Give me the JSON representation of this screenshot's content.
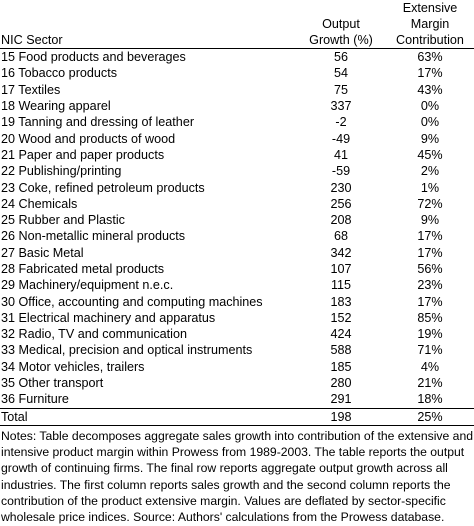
{
  "headers": {
    "sector": "NIC Sector",
    "growth_line1": "Output",
    "growth_line2": "Growth (%)",
    "margin_line1": "Extensive",
    "margin_line2": "Margin",
    "margin_line3": "Contribution"
  },
  "rows": [
    {
      "sector": "15 Food products and beverages",
      "growth": "56",
      "margin": "63%"
    },
    {
      "sector": "16 Tobacco products",
      "growth": "54",
      "margin": "17%"
    },
    {
      "sector": "17 Textiles",
      "growth": "75",
      "margin": "43%"
    },
    {
      "sector": "18 Wearing apparel",
      "growth": "337",
      "margin": "0%"
    },
    {
      "sector": "19 Tanning and dressing of leather",
      "growth": "-2",
      "margin": "0%"
    },
    {
      "sector": "20 Wood and products of wood",
      "growth": "-49",
      "margin": "9%"
    },
    {
      "sector": "21 Paper and paper products",
      "growth": "41",
      "margin": "45%"
    },
    {
      "sector": "22 Publishing/printing",
      "growth": "-59",
      "margin": "2%"
    },
    {
      "sector": "23 Coke, refined petroleum products",
      "growth": "230",
      "margin": "1%"
    },
    {
      "sector": "24 Chemicals",
      "growth": "256",
      "margin": "72%"
    },
    {
      "sector": "25 Rubber and Plastic",
      "growth": "208",
      "margin": "9%"
    },
    {
      "sector": "26 Non-metallic mineral products",
      "growth": "68",
      "margin": "17%"
    },
    {
      "sector": "27 Basic Metal",
      "growth": "342",
      "margin": "17%"
    },
    {
      "sector": "28 Fabricated metal products",
      "growth": "107",
      "margin": "56%"
    },
    {
      "sector": "29 Machinery/equipment n.e.c.",
      "growth": "115",
      "margin": "23%"
    },
    {
      "sector": "30 Office, accounting and computing machines",
      "growth": "183",
      "margin": "17%"
    },
    {
      "sector": "31 Electrical machinery and apparatus",
      "growth": "152",
      "margin": "85%"
    },
    {
      "sector": "32 Radio, TV and communication",
      "growth": "424",
      "margin": "19%"
    },
    {
      "sector": "33 Medical, precision and optical instruments",
      "growth": "588",
      "margin": "71%"
    },
    {
      "sector": "34 Motor vehicles, trailers",
      "growth": "185",
      "margin": "4%"
    },
    {
      "sector": "35 Other transport",
      "growth": "280",
      "margin": "21%"
    },
    {
      "sector": "36 Furniture",
      "growth": "291",
      "margin": "18%"
    }
  ],
  "total": {
    "sector": "Total",
    "growth": "198",
    "margin": "25%"
  },
  "notes": "Notes: Table decomposes aggregate sales growth into contribution of the extensive and intensive product margin within Prowess from 1989-2003. The table reports the output growth of continuing firms. The final row reports aggregate output growth across all industries. The first column reports sales growth and the second column reports the contribution of the product extensive margin. Values are deflated by sector-specific wholesale price indices. Source: Authors' calculations from the Prowess database."
}
